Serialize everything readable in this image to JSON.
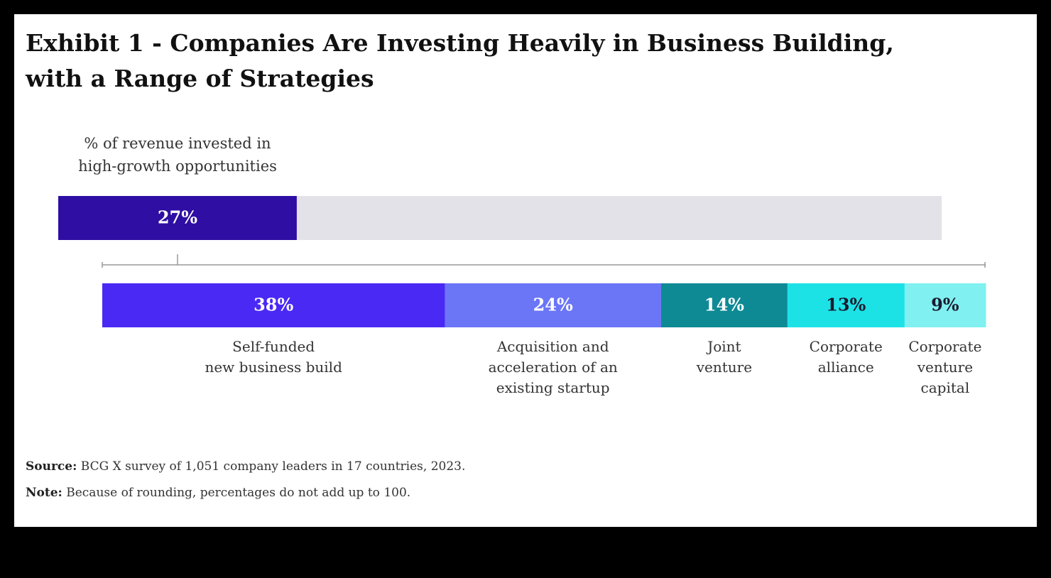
{
  "title": "Exhibit 1 - Companies Are Investing Heavily in Business Building,\nwith a Range of Strategies",
  "chart_data": [
    {
      "type": "progress",
      "subtitle": "% of revenue invested in\nhigh-growth opportunities",
      "values": [
        27
      ],
      "value_labels": [
        "27%"
      ],
      "xlim": [
        0,
        100
      ],
      "color": "#2e0ea3",
      "track_color": "#e2e2e8",
      "label_color": "#ffffff"
    },
    {
      "type": "stacked-bar",
      "categories": [
        "Self-funded\nnew business build",
        "Acquisition and\nacceleration of an\nexisting startup",
        "Joint\nventure",
        "Corporate\nalliance",
        "Corporate\nventure\ncapital"
      ],
      "values": [
        38,
        24,
        14,
        13,
        9
      ],
      "value_labels": [
        "38%",
        "24%",
        "14%",
        "13%",
        "9%"
      ],
      "colors": [
        "#4a29f5",
        "#6b76f6",
        "#0e8a94",
        "#1ce2e6",
        "#80f0f0"
      ],
      "label_colors": [
        "#ffffff",
        "#ffffff",
        "#ffffff",
        "#1a1a2e",
        "#1a1a2e"
      ]
    }
  ],
  "footer": {
    "source_label": "Source:",
    "source": "BCG X survey of 1,051 company leaders in 17 countries, 2023.",
    "note_label": "Note:",
    "note": "Because of rounding, percentages do not add up to 100."
  }
}
